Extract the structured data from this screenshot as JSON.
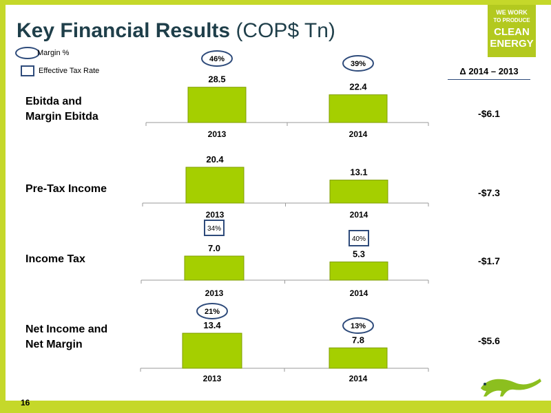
{
  "title": {
    "bold": "Key Financial Results",
    "normal": " (COP$ Tn)"
  },
  "legend": {
    "margin_label": "Margin %",
    "tax_label": "Effective Tax Rate"
  },
  "logo": {
    "line1": "WE WORK",
    "line2": "TO PRODUCE",
    "line3": "CLEAN",
    "line4": "ENERGY"
  },
  "delta_header": "Δ 2014 – 2013",
  "page_number": "16",
  "colors": {
    "bar": "#a5cf00",
    "background": "#c5d82a",
    "marker": "#2d4a7a"
  },
  "rows": [
    {
      "label": "Ebitda  and\nMargin Ebitda",
      "delta": "-$6.1"
    },
    {
      "label": "Pre-Tax Income",
      "delta": "-$7.3"
    },
    {
      "label": "Income Tax",
      "delta": "-$1.7"
    },
    {
      "label": "Net Income and\nNet Margin",
      "delta": "-$5.6"
    }
  ],
  "chart_data": [
    {
      "type": "bar",
      "categories": [
        "2013",
        "2014"
      ],
      "values": [
        28.5,
        22.4
      ],
      "value_labels": [
        "28.5",
        "22.4"
      ],
      "marker": "ellipse",
      "markers": [
        "46%",
        "39%"
      ]
    },
    {
      "type": "bar",
      "categories": [
        "2013",
        "2014"
      ],
      "values": [
        20.4,
        13.1
      ],
      "value_labels": [
        "20.4",
        "13.1"
      ]
    },
    {
      "type": "bar",
      "categories": [
        "2013",
        "2014"
      ],
      "values": [
        7.0,
        5.3
      ],
      "value_labels": [
        "7.0",
        "5.3"
      ],
      "marker": "box",
      "markers": [
        "34%",
        "40%"
      ]
    },
    {
      "type": "bar",
      "categories": [
        "2013",
        "2014"
      ],
      "values": [
        13.4,
        7.8
      ],
      "value_labels": [
        "13.4",
        "7.8"
      ],
      "marker": "ellipse",
      "markers": [
        "21%",
        "13%"
      ]
    }
  ]
}
